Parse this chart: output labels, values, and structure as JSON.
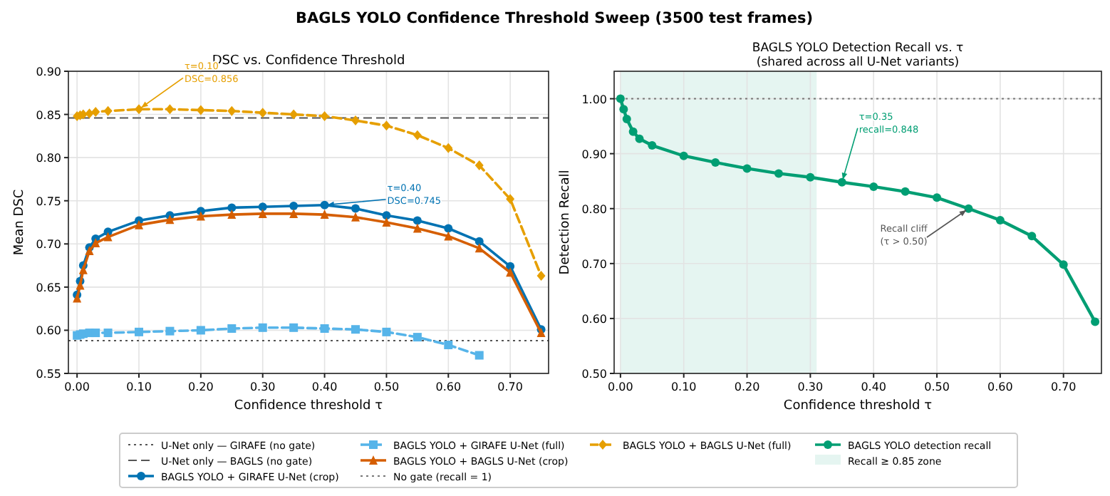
{
  "chart_data": [
    {
      "type": "line",
      "title": "BAGLS YOLO Confidence Threshold Sweep (3500 test frames)",
      "subtitle": "DSC vs. Confidence Threshold",
      "xlabel": "Confidence threshold τ",
      "ylabel": "Mean DSC",
      "x": [
        0,
        0.005,
        0.01,
        0.02,
        0.03,
        0.05,
        0.1,
        0.15,
        0.2,
        0.25,
        0.3,
        0.35,
        0.4,
        0.45,
        0.5,
        0.55,
        0.6,
        0.65,
        0.7,
        0.75
      ],
      "xlim": [
        -0.014,
        0.762
      ],
      "xticks": [
        {
          "value": 0,
          "label": "0.00"
        },
        {
          "value": 0.1,
          "label": "0.10"
        },
        {
          "value": 0.2,
          "label": "0.20"
        },
        {
          "value": 0.3,
          "label": "0.30"
        },
        {
          "value": 0.4,
          "label": "0.40"
        },
        {
          "value": 0.5,
          "label": "0.50"
        },
        {
          "value": 0.6,
          "label": "0.60"
        },
        {
          "value": 0.7,
          "label": "0.70"
        }
      ],
      "ylim": [
        0.55,
        0.9
      ],
      "yticks": [
        {
          "value": 0.55,
          "label": "0.55"
        },
        {
          "value": 0.6,
          "label": "0.60"
        },
        {
          "value": 0.65,
          "label": "0.65"
        },
        {
          "value": 0.7,
          "label": "0.70"
        },
        {
          "value": 0.75,
          "label": "0.75"
        },
        {
          "value": 0.8,
          "label": "0.80"
        },
        {
          "value": 0.85,
          "label": "0.85"
        },
        {
          "value": 0.9,
          "label": "0.90"
        }
      ],
      "grid": true,
      "legend": "bottom",
      "ref_lines": [
        {
          "axis": "y",
          "value": 0.588,
          "label": "U-Net only — GIRAFE (no gate)",
          "color": "#555555",
          "line_style": "dotted"
        },
        {
          "axis": "y",
          "value": 0.846,
          "label": "U-Net only — BAGLS (no gate)",
          "color": "#555555",
          "line_style": "dashed"
        }
      ],
      "series": [
        {
          "name": "BAGLS YOLO + GIRAFE U-Net (crop)",
          "color": "#0072b2",
          "marker": "circle",
          "line_style": "solid",
          "values": [
            0.641,
            0.657,
            0.675,
            0.696,
            0.706,
            0.714,
            0.727,
            0.733,
            0.738,
            0.742,
            0.743,
            0.744,
            0.745,
            0.741,
            0.733,
            0.727,
            0.718,
            0.703,
            0.674,
            0.601
          ]
        },
        {
          "name": "BAGLS YOLO + GIRAFE U-Net (full)",
          "color": "#56b4e9",
          "marker": "square",
          "line_style": "dashed",
          "values": [
            0.594,
            0.595,
            0.596,
            0.597,
            0.597,
            0.597,
            0.598,
            0.599,
            0.6,
            0.602,
            0.603,
            0.603,
            0.602,
            0.601,
            0.598,
            0.592,
            0.583,
            0.571,
            null,
            null
          ]
        },
        {
          "name": "BAGLS YOLO + BAGLS U-Net (crop)",
          "color": "#d55e00",
          "marker": "triangle",
          "line_style": "solid",
          "values": [
            0.637,
            0.652,
            0.67,
            0.692,
            0.701,
            0.708,
            0.722,
            0.728,
            0.732,
            0.734,
            0.735,
            0.735,
            0.734,
            0.731,
            0.725,
            0.718,
            0.709,
            0.695,
            0.667,
            0.597
          ]
        },
        {
          "name": "BAGLS YOLO + BAGLS U-Net (full)",
          "color": "#e69f00",
          "marker": "diamond",
          "line_style": "dashed",
          "values": [
            0.848,
            0.849,
            0.85,
            0.851,
            0.853,
            0.854,
            0.856,
            0.856,
            0.855,
            0.854,
            0.852,
            0.85,
            0.848,
            0.843,
            0.837,
            0.826,
            0.811,
            0.791,
            0.752,
            0.663
          ]
        }
      ],
      "annotations": [
        {
          "text": "τ=0.10\nDSC=0.856",
          "x": 0.1,
          "y": 0.856
        },
        {
          "text": "τ=0.40\nDSC=0.745",
          "x": 0.4,
          "y": 0.745
        }
      ]
    },
    {
      "type": "line",
      "title": "BAGLS YOLO Detection Recall vs. τ",
      "subtitle": "(shared across all U-Net variants)",
      "xlabel": "Confidence threshold τ",
      "ylabel": "Detection Recall",
      "x": [
        0,
        0.005,
        0.01,
        0.02,
        0.03,
        0.05,
        0.1,
        0.15,
        0.2,
        0.25,
        0.3,
        0.35,
        0.4,
        0.45,
        0.5,
        0.55,
        0.6,
        0.65,
        0.7,
        0.75
      ],
      "xlim": [
        -0.01,
        0.76
      ],
      "xticks": [
        {
          "value": 0,
          "label": "0.00"
        },
        {
          "value": 0.1,
          "label": "0.10"
        },
        {
          "value": 0.2,
          "label": "0.20"
        },
        {
          "value": 0.3,
          "label": "0.30"
        },
        {
          "value": 0.4,
          "label": "0.40"
        },
        {
          "value": 0.5,
          "label": "0.50"
        },
        {
          "value": 0.6,
          "label": "0.60"
        },
        {
          "value": 0.7,
          "label": "0.70"
        }
      ],
      "ylim": [
        0.5,
        1.05
      ],
      "yticks": [
        {
          "value": 0.5,
          "label": "0.50"
        },
        {
          "value": 0.6,
          "label": "0.60"
        },
        {
          "value": 0.7,
          "label": "0.70"
        },
        {
          "value": 0.8,
          "label": "0.80"
        },
        {
          "value": 0.9,
          "label": "0.90"
        },
        {
          "value": 1,
          "label": "1.00"
        }
      ],
      "grid": true,
      "legend": "bottom",
      "ref_lines": [
        {
          "axis": "y",
          "value": 1,
          "label": "No gate (recall = 1)",
          "color": "#777777",
          "line_style": "dotted"
        }
      ],
      "bands": [
        {
          "axis": "x",
          "from": 0,
          "to": 0.31,
          "label": "Recall ≥ 0.85 zone",
          "color": "#009e73"
        }
      ],
      "series": [
        {
          "name": "BAGLS YOLO detection recall",
          "color": "#009e73",
          "marker": "circle",
          "line_style": "solid",
          "values": [
            1,
            0.981,
            0.963,
            0.94,
            0.927,
            0.915,
            0.896,
            0.884,
            0.873,
            0.864,
            0.857,
            0.848,
            0.84,
            0.831,
            0.82,
            0.8,
            0.779,
            0.75,
            0.698,
            0.594
          ]
        }
      ],
      "annotations": [
        {
          "text": "τ=0.35\nrecall=0.848",
          "x": 0.35,
          "y": 0.848
        },
        {
          "text": "Recall cliff\n(τ > 0.50)",
          "x": 0.55,
          "y": 0.8
        }
      ]
    }
  ]
}
